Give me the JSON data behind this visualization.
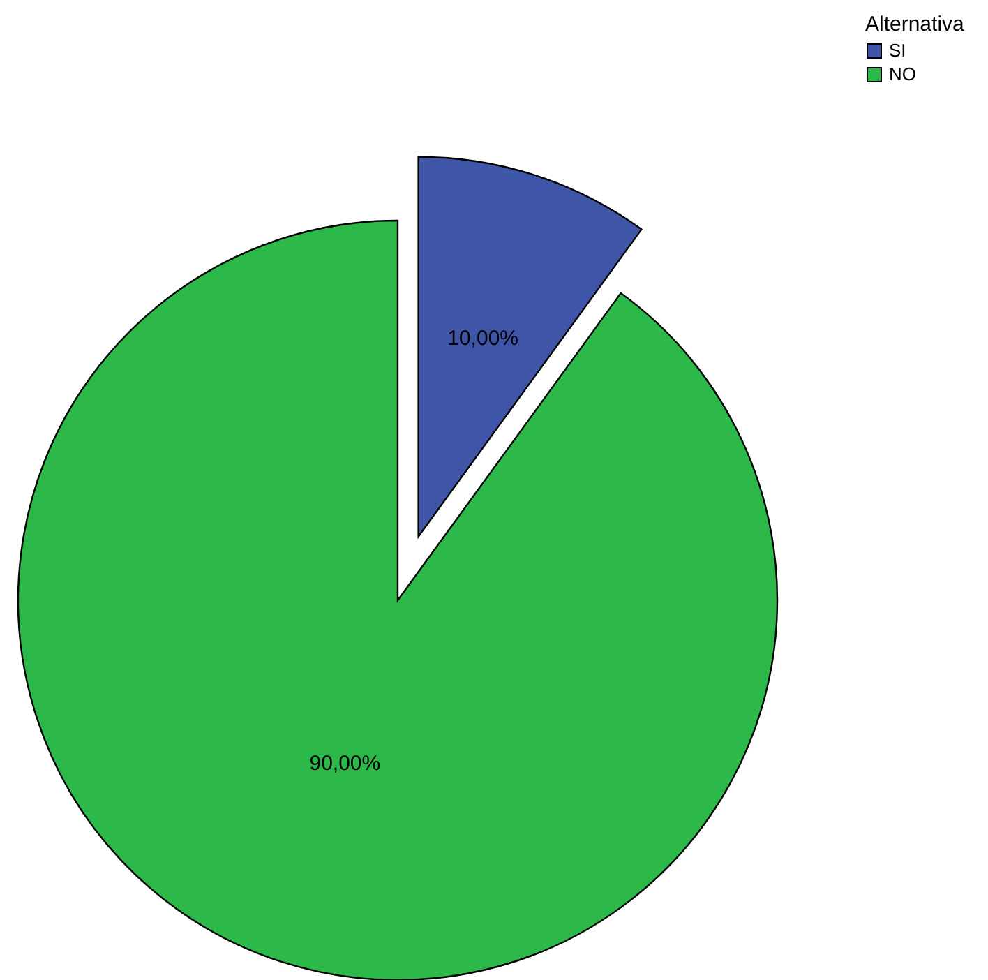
{
  "chart_data": {
    "type": "pie",
    "categories": [
      "SI",
      "NO"
    ],
    "values": [
      10,
      90
    ],
    "colors": [
      "#3f56a8",
      "#2db84a"
    ],
    "value_labels": [
      "10,00%",
      "90,00%"
    ],
    "legend_title": "Alternativa",
    "legend": "top right"
  }
}
